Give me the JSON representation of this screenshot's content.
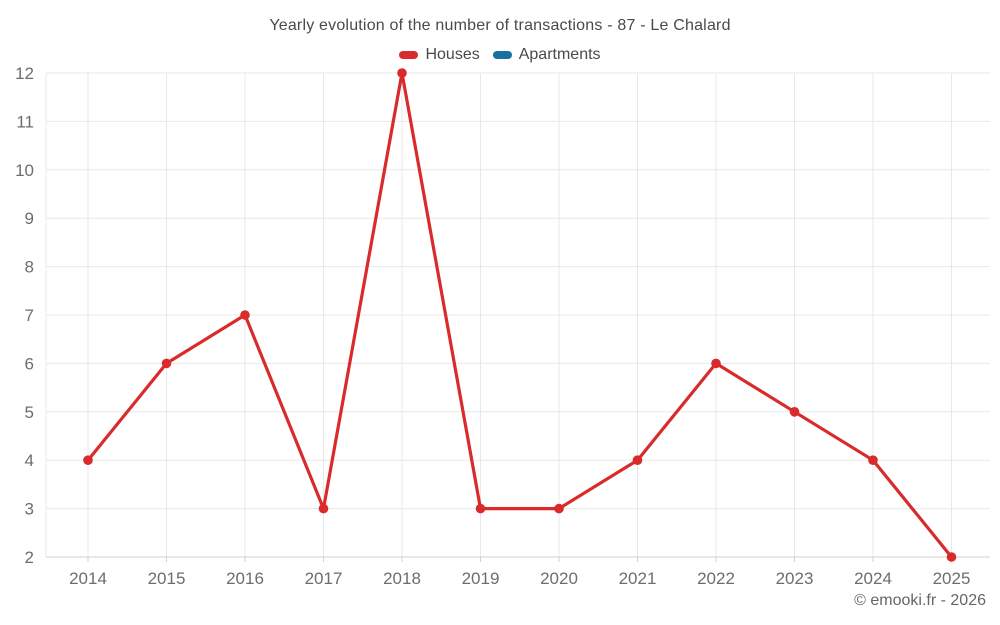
{
  "footer": "© emooki.fr - 2026",
  "colors": {
    "houses_red": "#d92b2b",
    "apartments_blue": "#17719e",
    "gridline": "#e8e8e8",
    "axis_line": "#d0d0d0",
    "tick_label_text": "#6d6d6d",
    "title_text": "#4a4a4a",
    "footer_text": "#666666"
  },
  "chart_data": {
    "type": "line",
    "title": "Yearly evolution of the number of transactions - 87 - Le Chalard",
    "categories": [
      "2014",
      "2015",
      "2016",
      "2017",
      "2018",
      "2019",
      "2020",
      "2021",
      "2022",
      "2023",
      "2024",
      "2025"
    ],
    "series": [
      {
        "name": "Houses",
        "color": "#d92b2b",
        "values": [
          4,
          6,
          7,
          3,
          12,
          3,
          3,
          4,
          6,
          5,
          4,
          2
        ]
      },
      {
        "name": "Apartments",
        "color": "#17719e",
        "values": []
      }
    ],
    "xlabel": "",
    "ylabel": "",
    "ylim": [
      2,
      12
    ],
    "ytick_step": 1,
    "grid": true,
    "legend_position": "top",
    "marker": "circle"
  }
}
